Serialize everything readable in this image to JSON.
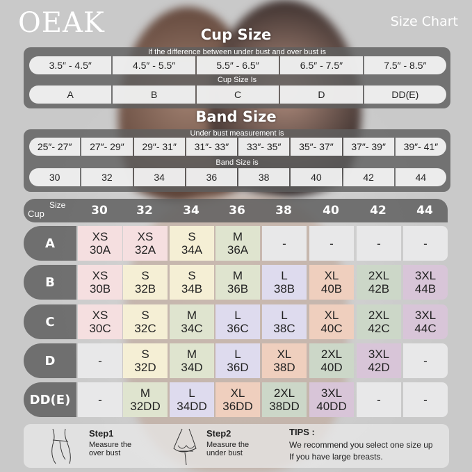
{
  "brand": "OEAK",
  "heading": "Size Chart",
  "cup_section": {
    "title": "Cup Size",
    "diff_label": "If the  difference between under bust and over bust is",
    "differences": [
      "3.5″ -  4.5″",
      "4.5″ -  5.5″",
      "5.5″ -  6.5″",
      "6.5″ -  7.5″",
      "7.5″ -  8.5″"
    ],
    "cup_label": "Cup Size Is",
    "cups": [
      "A",
      "B",
      "C",
      "D",
      "DD(E)"
    ]
  },
  "band_section": {
    "title": "Band Size",
    "under_label": "Under bust measurement is",
    "measurements": [
      "25″- 27″",
      "27″- 29″",
      "29″- 31″",
      "31″- 33″",
      "33″- 35″",
      "35″- 37″",
      "37″- 39″",
      "39″- 41″"
    ],
    "band_label": "Band Size is",
    "bands": [
      "30",
      "32",
      "34",
      "36",
      "38",
      "40",
      "42",
      "44"
    ]
  },
  "grid": {
    "corner_cup": "Cup",
    "corner_size": "Size",
    "columns": [
      "30",
      "32",
      "34",
      "36",
      "38",
      "40",
      "42",
      "44"
    ],
    "colors": {
      "XS": "#f5dfe0",
      "S": "#f5efd5",
      "M": "#dfe4cf",
      "L": "#dedbee",
      "XL": "#efcfbe",
      "2XL": "#ccd7c8",
      "3XL": "#d8c5d8",
      "-": "#e8e8e9"
    },
    "rows": [
      {
        "cup": "A",
        "cells": [
          [
            "XS",
            "30A"
          ],
          [
            "XS",
            "32A"
          ],
          [
            "S",
            "34A"
          ],
          [
            "M",
            "36A"
          ],
          [
            "-",
            ""
          ],
          [
            "-",
            ""
          ],
          [
            "-",
            ""
          ],
          [
            "-",
            ""
          ]
        ]
      },
      {
        "cup": "B",
        "cells": [
          [
            "XS",
            "30B"
          ],
          [
            "S",
            "32B"
          ],
          [
            "S",
            "34B"
          ],
          [
            "M",
            "36B"
          ],
          [
            "L",
            "38B"
          ],
          [
            "XL",
            "40B"
          ],
          [
            "2XL",
            "42B"
          ],
          [
            "3XL",
            "44B"
          ]
        ]
      },
      {
        "cup": "C",
        "cells": [
          [
            "XS",
            "30C"
          ],
          [
            "S",
            "32C"
          ],
          [
            "M",
            "34C"
          ],
          [
            "L",
            "36C"
          ],
          [
            "L",
            "38C"
          ],
          [
            "XL",
            "40C"
          ],
          [
            "2XL",
            "42C"
          ],
          [
            "3XL",
            "44C"
          ]
        ]
      },
      {
        "cup": "D",
        "cells": [
          [
            "-",
            ""
          ],
          [
            "S",
            "32D"
          ],
          [
            "M",
            "34D"
          ],
          [
            "L",
            "36D"
          ],
          [
            "XL",
            "38D"
          ],
          [
            "2XL",
            "40D"
          ],
          [
            "3XL",
            "42D"
          ],
          [
            "-",
            ""
          ]
        ]
      },
      {
        "cup": "DD(E)",
        "cells": [
          [
            "-",
            ""
          ],
          [
            "M",
            "32DD"
          ],
          [
            "L",
            "34DD"
          ],
          [
            "XL",
            "36DD"
          ],
          [
            "2XL",
            "38DD"
          ],
          [
            "3XL",
            "40DD"
          ],
          [
            "-",
            ""
          ],
          [
            "-",
            ""
          ]
        ]
      }
    ]
  },
  "steps": [
    {
      "title": "Step1",
      "line1": "Measure the",
      "line2": "over bust"
    },
    {
      "title": "Step2",
      "line1": "Measure the",
      "line2": "under bust"
    }
  ],
  "tips": {
    "title": "TIPS :",
    "line1": "We recommend you select one size up",
    "line2": "If you have large breasts."
  }
}
